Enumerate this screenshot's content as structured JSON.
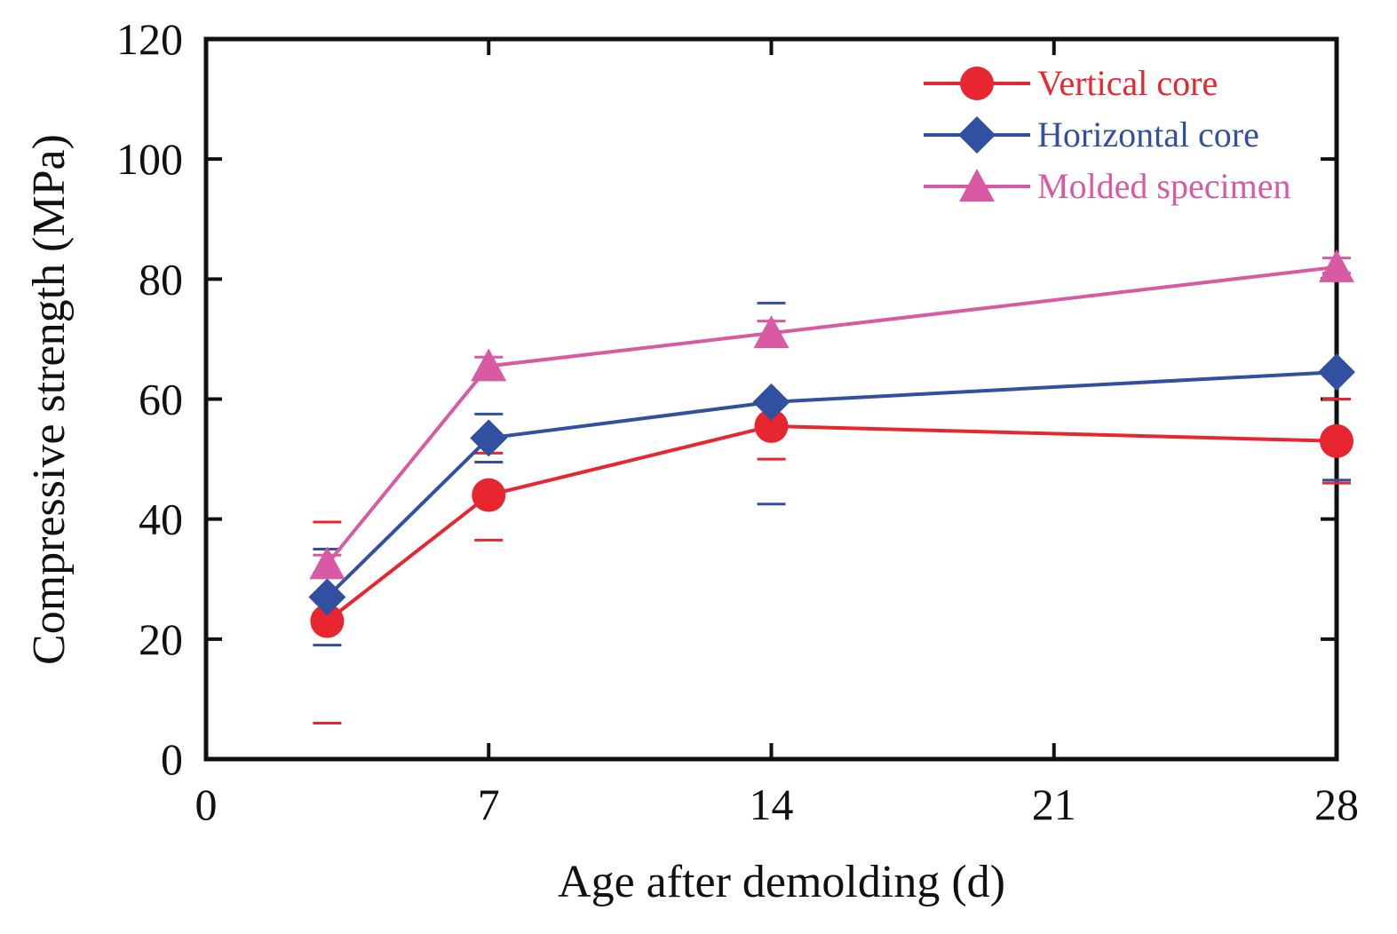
{
  "chart_data": {
    "type": "line",
    "xlabel": "Age after demolding (d)",
    "ylabel": "Compressive strength (MPa)",
    "xlim": [
      0,
      28
    ],
    "ylim": [
      0,
      120
    ],
    "xticks": [
      0,
      7,
      14,
      21,
      28
    ],
    "yticks": [
      0,
      20,
      40,
      60,
      80,
      100,
      120
    ],
    "grid": false,
    "legend_position": "top-right",
    "series": [
      {
        "name": "Vertical core",
        "color": "#e8262f",
        "marker": "circle",
        "x": [
          3,
          7,
          14,
          28
        ],
        "y": [
          23,
          44,
          55.5,
          53
        ],
        "err_low": [
          6,
          36.5,
          50,
          46
        ],
        "err_high": [
          39.5,
          51,
          60,
          60
        ]
      },
      {
        "name": "Horizontal core",
        "color": "#3150a0",
        "marker": "diamond",
        "x": [
          3,
          7,
          14,
          28
        ],
        "y": [
          27,
          53.5,
          59.5,
          64.5
        ],
        "err_low": [
          19,
          49.5,
          42.5,
          46.5
        ],
        "err_high": [
          35,
          57.5,
          76,
          64.5
        ]
      },
      {
        "name": "Molded specimen",
        "color": "#d75aa3",
        "marker": "triangle",
        "x": [
          3,
          7,
          14,
          28
        ],
        "y": [
          32.5,
          65.5,
          71,
          82
        ],
        "err_low": [
          31,
          64,
          69,
          81
        ],
        "err_high": [
          34,
          67,
          73,
          83.5
        ]
      }
    ]
  }
}
